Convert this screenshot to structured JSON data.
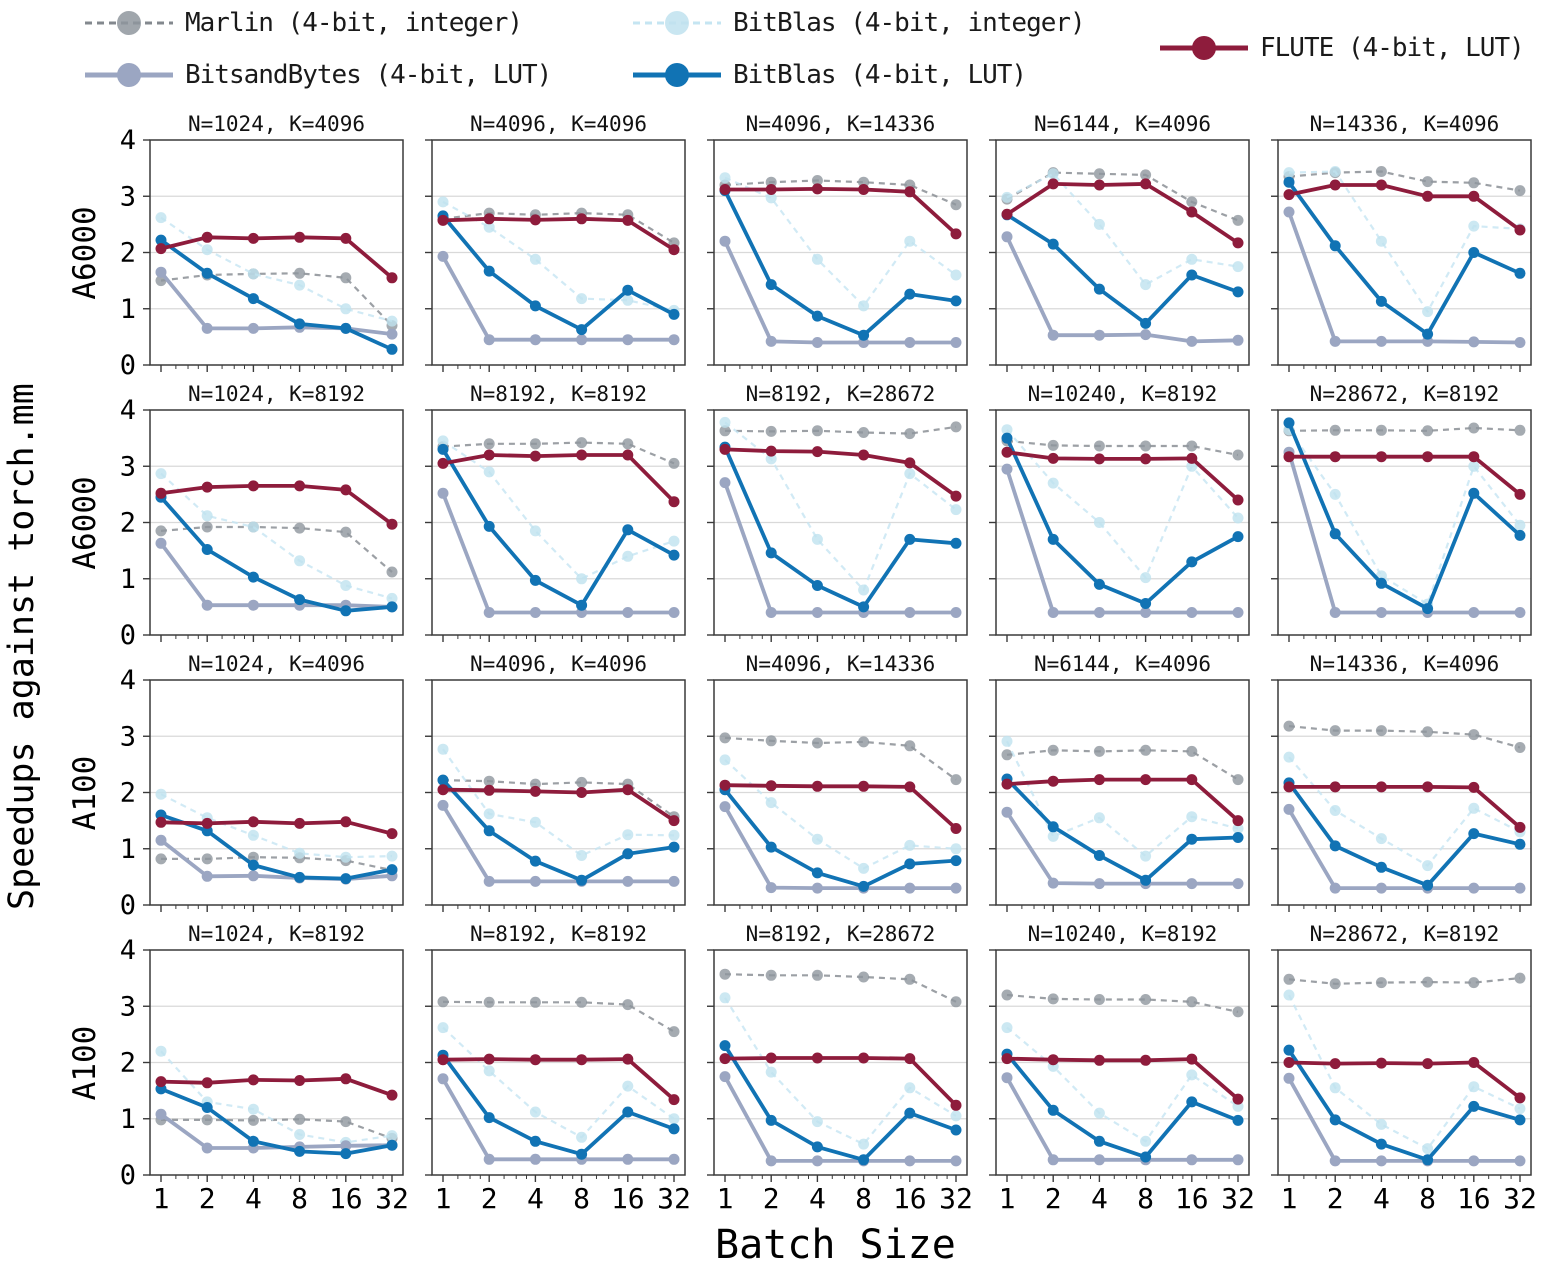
{
  "figure": {
    "y_axis_label": "Speedups against torch.mm",
    "x_axis_label": "Batch Size",
    "row_labels": [
      "A6000",
      "A6000",
      "A100",
      "A100"
    ],
    "background": "#ffffff",
    "grid_color": "#d9d9d9",
    "axis_color": "#3a3a3a"
  },
  "legend": {
    "items": [
      {
        "name": "marlin",
        "label": "Marlin (4-bit, integer)",
        "color": "#8f969e",
        "line_color": "#83888e",
        "dashed": true
      },
      {
        "name": "bitblas_int",
        "label": "BitBlas (4-bit, integer)",
        "color": "#bfe2ef",
        "line_color": "#c5e5f2",
        "dashed": true
      },
      {
        "name": "bitsandbytes",
        "label": "BitsandBytes (4-bit, LUT)",
        "color": "#9ba6c2",
        "line_color": "#9ba6c2",
        "dashed": false
      },
      {
        "name": "bitblas_lut",
        "label": "BitBlas (4-bit, LUT)",
        "color": "#1173b4",
        "line_color": "#1173b4",
        "dashed": false
      },
      {
        "name": "flute",
        "label": "FLUTE (4-bit, LUT)",
        "color": "#8e1c3c",
        "line_color": "#8e1c3c",
        "dashed": false
      }
    ]
  },
  "chart_data": {
    "type": "line",
    "x": [
      1,
      2,
      4,
      8,
      16,
      32
    ],
    "x_scale": "log2",
    "ylim": [
      0,
      4
    ],
    "y_ticks": [
      0,
      1,
      2,
      3,
      4
    ],
    "x_tick_labels": [
      "1",
      "2",
      "4",
      "8",
      "16",
      "32"
    ],
    "grid": "horizontal-only",
    "legend_position": "top",
    "series_order": [
      "marlin",
      "bitblas_int",
      "bitsandbytes",
      "bitblas_lut",
      "flute"
    ],
    "subplots": [
      {
        "row": 0,
        "col": 0,
        "gpu": "A6000",
        "title": "N=1024, K=4096",
        "values": {
          "marlin": [
            1.5,
            1.6,
            1.62,
            1.63,
            1.55,
            0.7
          ],
          "bitblas_int": [
            2.62,
            2.05,
            1.62,
            1.42,
            1.0,
            0.78
          ],
          "bitsandbytes": [
            1.65,
            0.65,
            0.65,
            0.67,
            0.65,
            0.55
          ],
          "bitblas_lut": [
            2.22,
            1.63,
            1.18,
            0.73,
            0.65,
            0.28
          ],
          "flute": [
            2.07,
            2.27,
            2.25,
            2.27,
            2.25,
            1.55
          ]
        }
      },
      {
        "row": 0,
        "col": 1,
        "gpu": "A6000",
        "title": "N=4096, K=4096",
        "values": {
          "marlin": [
            2.6,
            2.7,
            2.67,
            2.7,
            2.67,
            2.17
          ],
          "bitblas_int": [
            2.9,
            2.45,
            1.88,
            1.18,
            1.15,
            0.97
          ],
          "bitsandbytes": [
            1.93,
            0.45,
            0.45,
            0.45,
            0.45,
            0.45
          ],
          "bitblas_lut": [
            2.65,
            1.67,
            1.05,
            0.63,
            1.33,
            0.9
          ],
          "flute": [
            2.57,
            2.6,
            2.58,
            2.6,
            2.57,
            2.05
          ]
        }
      },
      {
        "row": 0,
        "col": 2,
        "gpu": "A6000",
        "title": "N=4096, K=14336",
        "values": {
          "marlin": [
            3.2,
            3.25,
            3.28,
            3.25,
            3.2,
            2.85
          ],
          "bitblas_int": [
            3.33,
            2.97,
            1.88,
            1.05,
            2.2,
            1.6
          ],
          "bitsandbytes": [
            2.2,
            0.42,
            0.4,
            0.4,
            0.4,
            0.4
          ],
          "bitblas_lut": [
            3.1,
            1.43,
            0.87,
            0.53,
            1.26,
            1.14
          ],
          "flute": [
            3.12,
            3.12,
            3.13,
            3.12,
            3.08,
            2.33
          ]
        }
      },
      {
        "row": 0,
        "col": 3,
        "gpu": "A6000",
        "title": "N=6144, K=4096",
        "values": {
          "marlin": [
            2.95,
            3.42,
            3.4,
            3.38,
            2.9,
            2.57
          ],
          "bitblas_int": [
            2.98,
            3.4,
            2.5,
            1.43,
            1.88,
            1.75
          ],
          "bitsandbytes": [
            2.28,
            0.53,
            0.53,
            0.54,
            0.42,
            0.44
          ],
          "bitblas_lut": [
            2.67,
            2.15,
            1.35,
            0.74,
            1.6,
            1.3
          ],
          "flute": [
            2.68,
            3.22,
            3.2,
            3.22,
            2.72,
            2.17
          ]
        }
      },
      {
        "row": 0,
        "col": 4,
        "gpu": "A6000",
        "title": "N=14336, K=4096",
        "values": {
          "marlin": [
            3.35,
            3.42,
            3.44,
            3.26,
            3.24,
            3.1
          ],
          "bitblas_int": [
            3.42,
            3.44,
            2.2,
            0.95,
            2.47,
            2.42
          ],
          "bitsandbytes": [
            2.72,
            0.42,
            0.42,
            0.42,
            0.41,
            0.4
          ],
          "bitblas_lut": [
            3.25,
            2.12,
            1.13,
            0.55,
            2.0,
            1.63
          ],
          "flute": [
            3.03,
            3.2,
            3.2,
            3.0,
            3.0,
            2.4
          ]
        }
      },
      {
        "row": 1,
        "col": 0,
        "gpu": "A6000",
        "title": "N=1024, K=8192",
        "values": {
          "marlin": [
            1.85,
            1.92,
            1.92,
            1.9,
            1.83,
            1.12
          ],
          "bitblas_int": [
            2.87,
            2.12,
            1.92,
            1.32,
            0.88,
            0.65
          ],
          "bitsandbytes": [
            1.63,
            0.53,
            0.53,
            0.53,
            0.53,
            0.5
          ],
          "bitblas_lut": [
            2.45,
            1.52,
            1.03,
            0.63,
            0.43,
            0.5
          ],
          "flute": [
            2.52,
            2.63,
            2.65,
            2.65,
            2.58,
            1.97
          ]
        }
      },
      {
        "row": 1,
        "col": 1,
        "gpu": "A6000",
        "title": "N=8192, K=8192",
        "values": {
          "marlin": [
            3.35,
            3.4,
            3.4,
            3.42,
            3.4,
            3.05
          ],
          "bitblas_int": [
            3.45,
            2.9,
            1.85,
            1.0,
            1.4,
            1.67
          ],
          "bitsandbytes": [
            2.52,
            0.4,
            0.4,
            0.4,
            0.4,
            0.4
          ],
          "bitblas_lut": [
            3.3,
            1.93,
            0.97,
            0.53,
            1.87,
            1.42
          ],
          "flute": [
            3.05,
            3.2,
            3.18,
            3.2,
            3.2,
            2.37
          ]
        }
      },
      {
        "row": 1,
        "col": 2,
        "gpu": "A6000",
        "title": "N=8192, K=28672",
        "values": {
          "marlin": [
            3.63,
            3.62,
            3.63,
            3.6,
            3.58,
            3.7
          ],
          "bitblas_int": [
            3.78,
            3.13,
            1.7,
            0.8,
            2.87,
            2.23
          ],
          "bitsandbytes": [
            2.71,
            0.4,
            0.4,
            0.4,
            0.4,
            0.4
          ],
          "bitblas_lut": [
            3.34,
            1.46,
            0.88,
            0.5,
            1.7,
            1.63
          ],
          "flute": [
            3.3,
            3.27,
            3.26,
            3.2,
            3.06,
            2.47
          ]
        }
      },
      {
        "row": 1,
        "col": 3,
        "gpu": "A6000",
        "title": "N=10240, K=8192",
        "values": {
          "marlin": [
            3.45,
            3.37,
            3.36,
            3.36,
            3.36,
            3.2
          ],
          "bitblas_int": [
            3.65,
            2.7,
            2.0,
            1.02,
            3.0,
            2.08
          ],
          "bitsandbytes": [
            2.95,
            0.4,
            0.4,
            0.4,
            0.4,
            0.4
          ],
          "bitblas_lut": [
            3.5,
            1.7,
            0.9,
            0.56,
            1.3,
            1.75
          ],
          "flute": [
            3.25,
            3.14,
            3.13,
            3.13,
            3.14,
            2.4
          ]
        }
      },
      {
        "row": 1,
        "col": 4,
        "gpu": "A6000",
        "title": "N=28672, K=8192",
        "values": {
          "marlin": [
            3.63,
            3.64,
            3.64,
            3.63,
            3.68,
            3.64
          ],
          "bitblas_int": [
            3.65,
            2.5,
            1.05,
            0.55,
            3.0,
            1.95
          ],
          "bitsandbytes": [
            3.25,
            0.4,
            0.4,
            0.4,
            0.4,
            0.4
          ],
          "bitblas_lut": [
            3.77,
            1.8,
            0.92,
            0.47,
            2.52,
            1.77
          ],
          "flute": [
            3.17,
            3.17,
            3.17,
            3.17,
            3.17,
            2.5
          ]
        }
      },
      {
        "row": 2,
        "col": 0,
        "gpu": "A100",
        "title": "N=1024, K=4096",
        "values": {
          "marlin": [
            0.82,
            0.82,
            0.85,
            0.84,
            0.79,
            0.62
          ],
          "bitblas_int": [
            1.97,
            1.55,
            1.24,
            0.92,
            0.85,
            0.87
          ],
          "bitsandbytes": [
            1.15,
            0.51,
            0.52,
            0.48,
            0.46,
            0.52
          ],
          "bitblas_lut": [
            1.6,
            1.32,
            0.71,
            0.49,
            0.47,
            0.63
          ],
          "flute": [
            1.47,
            1.45,
            1.48,
            1.45,
            1.48,
            1.27
          ]
        }
      },
      {
        "row": 2,
        "col": 1,
        "gpu": "A100",
        "title": "N=4096, K=4096",
        "values": {
          "marlin": [
            2.22,
            2.2,
            2.15,
            2.18,
            2.15,
            1.57
          ],
          "bitblas_int": [
            2.77,
            1.62,
            1.47,
            0.88,
            1.25,
            1.24
          ],
          "bitsandbytes": [
            1.77,
            0.42,
            0.42,
            0.42,
            0.42,
            0.42
          ],
          "bitblas_lut": [
            2.22,
            1.32,
            0.78,
            0.44,
            0.91,
            1.03
          ],
          "flute": [
            2.05,
            2.04,
            2.02,
            2.0,
            2.05,
            1.5
          ]
        }
      },
      {
        "row": 2,
        "col": 2,
        "gpu": "A100",
        "title": "N=4096, K=14336",
        "values": {
          "marlin": [
            2.97,
            2.92,
            2.88,
            2.9,
            2.83,
            2.23
          ],
          "bitblas_int": [
            2.58,
            1.82,
            1.17,
            0.65,
            1.06,
            1.0
          ],
          "bitsandbytes": [
            1.75,
            0.31,
            0.3,
            0.3,
            0.3,
            0.3
          ],
          "bitblas_lut": [
            2.05,
            1.03,
            0.57,
            0.33,
            0.73,
            0.79
          ],
          "flute": [
            2.13,
            2.12,
            2.11,
            2.11,
            2.1,
            1.36
          ]
        }
      },
      {
        "row": 2,
        "col": 3,
        "gpu": "A100",
        "title": "N=6144, K=4096",
        "values": {
          "marlin": [
            2.67,
            2.75,
            2.73,
            2.75,
            2.73,
            2.23
          ],
          "bitblas_int": [
            2.91,
            1.22,
            1.55,
            0.87,
            1.57,
            1.36
          ],
          "bitsandbytes": [
            1.65,
            0.39,
            0.38,
            0.38,
            0.38,
            0.38
          ],
          "bitblas_lut": [
            2.24,
            1.39,
            0.88,
            0.44,
            1.17,
            1.2
          ],
          "flute": [
            2.15,
            2.2,
            2.23,
            2.23,
            2.23,
            1.5
          ]
        }
      },
      {
        "row": 2,
        "col": 4,
        "gpu": "A100",
        "title": "N=14336, K=4096",
        "values": {
          "marlin": [
            3.18,
            3.1,
            3.1,
            3.08,
            3.03,
            2.8
          ],
          "bitblas_int": [
            2.63,
            1.68,
            1.18,
            0.7,
            1.72,
            1.3
          ],
          "bitsandbytes": [
            1.7,
            0.3,
            0.3,
            0.3,
            0.3,
            0.3
          ],
          "bitblas_lut": [
            2.17,
            1.05,
            0.67,
            0.35,
            1.27,
            1.08
          ],
          "flute": [
            2.1,
            2.1,
            2.1,
            2.1,
            2.09,
            1.38
          ]
        }
      },
      {
        "row": 3,
        "col": 0,
        "gpu": "A100",
        "title": "N=1024, K=8192",
        "values": {
          "marlin": [
            0.98,
            0.98,
            0.97,
            0.99,
            0.95,
            0.65
          ],
          "bitblas_int": [
            2.2,
            1.3,
            1.17,
            0.72,
            0.58,
            0.7
          ],
          "bitsandbytes": [
            1.08,
            0.48,
            0.48,
            0.5,
            0.52,
            0.53
          ],
          "bitblas_lut": [
            1.53,
            1.2,
            0.6,
            0.42,
            0.38,
            0.53
          ],
          "flute": [
            1.66,
            1.64,
            1.69,
            1.68,
            1.71,
            1.42
          ]
        }
      },
      {
        "row": 3,
        "col": 1,
        "gpu": "A100",
        "title": "N=8192, K=8192",
        "values": {
          "marlin": [
            3.08,
            3.07,
            3.07,
            3.07,
            3.03,
            2.55
          ],
          "bitblas_int": [
            2.62,
            1.85,
            1.12,
            0.67,
            1.58,
            1.0
          ],
          "bitsandbytes": [
            1.71,
            0.28,
            0.28,
            0.28,
            0.28,
            0.28
          ],
          "bitblas_lut": [
            2.13,
            1.02,
            0.6,
            0.37,
            1.12,
            0.82
          ],
          "flute": [
            2.05,
            2.06,
            2.05,
            2.05,
            2.06,
            1.34
          ]
        }
      },
      {
        "row": 3,
        "col": 2,
        "gpu": "A100",
        "title": "N=8192, K=28672",
        "values": {
          "marlin": [
            3.57,
            3.55,
            3.55,
            3.52,
            3.48,
            3.08
          ],
          "bitblas_int": [
            3.15,
            1.83,
            0.95,
            0.55,
            1.55,
            1.05
          ],
          "bitsandbytes": [
            1.75,
            0.25,
            0.25,
            0.25,
            0.25,
            0.25
          ],
          "bitblas_lut": [
            2.3,
            0.97,
            0.5,
            0.27,
            1.1,
            0.8
          ],
          "flute": [
            2.07,
            2.08,
            2.08,
            2.08,
            2.07,
            1.24
          ]
        }
      },
      {
        "row": 3,
        "col": 3,
        "gpu": "A100",
        "title": "N=10240, K=8192",
        "values": {
          "marlin": [
            3.2,
            3.13,
            3.12,
            3.12,
            3.08,
            2.9
          ],
          "bitblas_int": [
            2.62,
            1.93,
            1.1,
            0.6,
            1.78,
            1.22
          ],
          "bitsandbytes": [
            1.73,
            0.27,
            0.27,
            0.27,
            0.27,
            0.27
          ],
          "bitblas_lut": [
            2.15,
            1.15,
            0.6,
            0.32,
            1.3,
            0.97
          ],
          "flute": [
            2.07,
            2.05,
            2.04,
            2.04,
            2.06,
            1.35
          ]
        }
      },
      {
        "row": 3,
        "col": 4,
        "gpu": "A100",
        "title": "N=28672, K=8192",
        "values": {
          "marlin": [
            3.48,
            3.4,
            3.42,
            3.43,
            3.42,
            3.5
          ],
          "bitblas_int": [
            3.2,
            1.55,
            0.9,
            0.47,
            1.57,
            1.18
          ],
          "bitsandbytes": [
            1.72,
            0.25,
            0.25,
            0.25,
            0.25,
            0.25
          ],
          "bitblas_lut": [
            2.22,
            0.98,
            0.55,
            0.27,
            1.22,
            0.98
          ],
          "flute": [
            2.0,
            1.98,
            1.99,
            1.98,
            2.0,
            1.37
          ]
        }
      }
    ]
  }
}
